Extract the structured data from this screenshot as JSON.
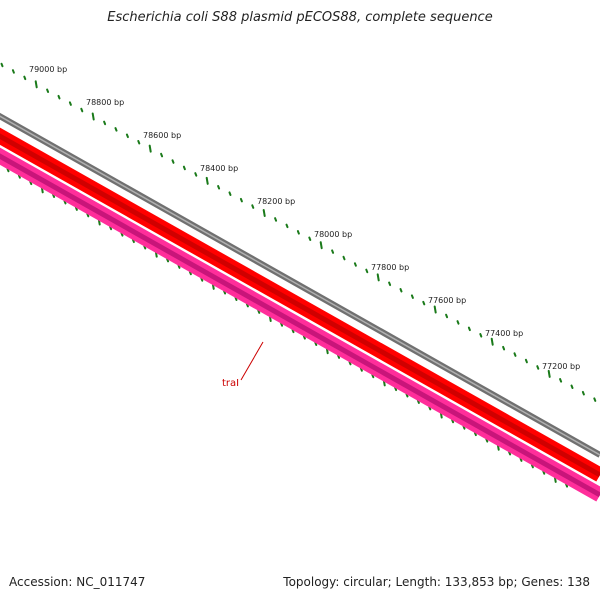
{
  "header": {
    "title": "Escherichia coli S88 plasmid pECOS88, complete sequence"
  },
  "footer": {
    "accession": "Accession: NC_011747",
    "summary": "Topology: circular; Length: 133,853 bp; Genes: 138"
  },
  "map": {
    "topology": "circular",
    "tick_labels": [
      "79000 bp",
      "78800 bp",
      "78600 bp",
      "78400 bp",
      "78200 bp",
      "78000 bp",
      "77800 bp",
      "77600 bp",
      "77400 bp",
      "77200 bp"
    ],
    "gene_labels": [
      {
        "text": "traI",
        "color": "#cc0000"
      }
    ],
    "colors": {
      "backbone": "#808080",
      "forward_feature": "#ff0000",
      "reverse_feature": "#ff1493",
      "gc_ticks": "#1a7a1a"
    }
  }
}
